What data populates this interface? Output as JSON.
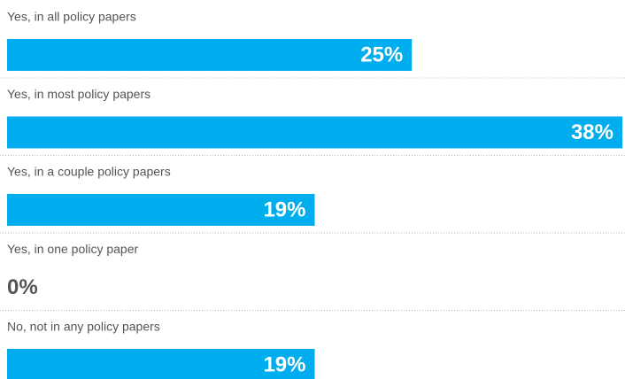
{
  "chart_data": {
    "type": "bar",
    "orientation": "horizontal",
    "categories": [
      "Yes, in all policy papers",
      "Yes, in most policy papers",
      "Yes, in a couple policy papers",
      "Yes, in one policy paper",
      "No, not in any policy papers"
    ],
    "values": [
      25,
      38,
      19,
      0,
      19
    ],
    "value_labels": [
      "25%",
      "38%",
      "19%",
      "0%",
      "19%"
    ],
    "color": "#00aeef"
  }
}
